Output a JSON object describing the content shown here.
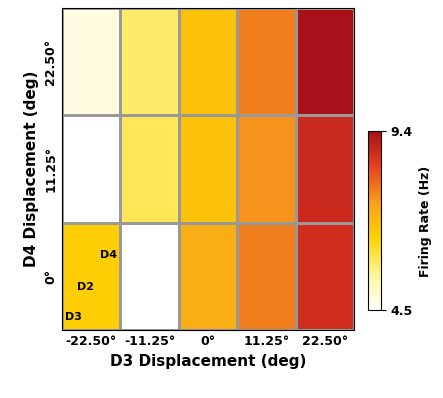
{
  "chart_data": {
    "type": "heatmap",
    "xlabel": "D3 Displacement (deg)",
    "ylabel": "D4 Displacement (deg)",
    "x": [
      -22.5,
      -11.25,
      0,
      11.25,
      22.5
    ],
    "y": [
      0,
      11.25,
      22.5
    ],
    "xlim": [
      -28.125,
      28.125
    ],
    "ylim": [
      -5.625,
      28.125
    ],
    "xticks": [
      {
        "value": -22.5,
        "label": "-22.50°"
      },
      {
        "value": -11.25,
        "label": "-11.25°"
      },
      {
        "value": 0,
        "label": "0°"
      },
      {
        "value": 11.25,
        "label": "11.25°"
      },
      {
        "value": 22.5,
        "label": "22.50°"
      }
    ],
    "yticks": [
      {
        "value": 0,
        "label": "0°"
      },
      {
        "value": 11.25,
        "label": "11.25°"
      },
      {
        "value": 22.5,
        "label": "22.50°"
      }
    ],
    "cells": [
      [
        6.6,
        4.5,
        7.2,
        7.8,
        8.8
      ],
      [
        null,
        5.9,
        6.8,
        7.6,
        8.9
      ],
      [
        4.8,
        5.8,
        6.8,
        7.8,
        9.4
      ]
    ],
    "colorbar": {
      "label": "Firing Rate (Hz)",
      "range": [
        4.5,
        9.4
      ],
      "ticks": [
        9.4,
        4.5
      ]
    },
    "cell_labels": [
      "D4",
      "D2",
      "D3"
    ]
  }
}
